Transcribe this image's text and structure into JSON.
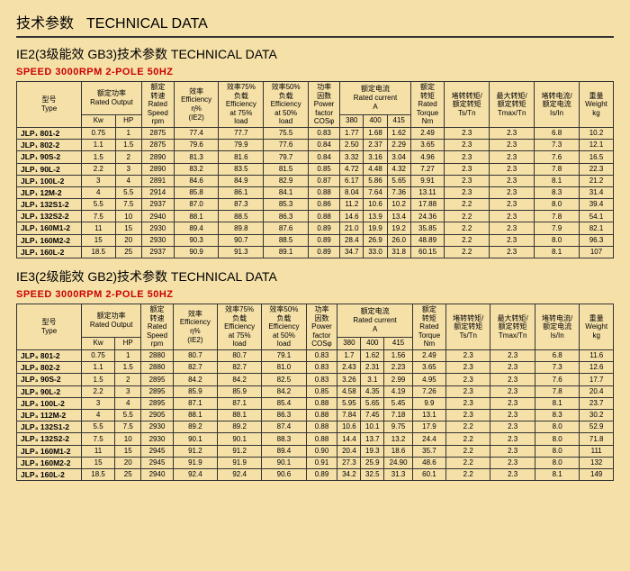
{
  "header": {
    "cn": "技术参数",
    "en": "TECHNICAL DATA"
  },
  "sections": [
    {
      "title": "IE2(3级能效 GB3)技术参数  TECHNICAL DATA",
      "speed": "SPEED 3000RPM  2-POLE 50HZ",
      "rows": [
        [
          "JLP₁ 801-2",
          "0.75",
          "1",
          "2875",
          "77.4",
          "77.7",
          "75.5",
          "0.83",
          "1.77",
          "1.68",
          "1.62",
          "2.49",
          "2.3",
          "2.3",
          "6.8",
          "10.2"
        ],
        [
          "JLP₁ 802-2",
          "1.1",
          "1.5",
          "2875",
          "79.6",
          "79.9",
          "77.6",
          "0.84",
          "2.50",
          "2.37",
          "2.29",
          "3.65",
          "2.3",
          "2.3",
          "7.3",
          "12.1"
        ],
        [
          "JLP₁ 90S-2",
          "1.5",
          "2",
          "2890",
          "81.3",
          "81.6",
          "79.7",
          "0.84",
          "3.32",
          "3.16",
          "3.04",
          "4.96",
          "2.3",
          "2.3",
          "7.6",
          "16.5"
        ],
        [
          "JLP₁ 90L-2",
          "2.2",
          "3",
          "2890",
          "83.2",
          "83.5",
          "81.5",
          "0.85",
          "4.72",
          "4.48",
          "4.32",
          "7.27",
          "2.3",
          "2.3",
          "7.8",
          "22.3"
        ],
        [
          "JLP₁ 100L-2",
          "3",
          "4",
          "2891",
          "84.6",
          "84.9",
          "82.9",
          "0.87",
          "6.17",
          "5.86",
          "5.65",
          "9.91",
          "2.3",
          "2.3",
          "8.1",
          "21.2"
        ],
        [
          "JLP₁ 12M-2",
          "4",
          "5.5",
          "2914",
          "85.8",
          "86.1",
          "84.1",
          "0.88",
          "8.04",
          "7.64",
          "7.36",
          "13.11",
          "2.3",
          "2.3",
          "8.3",
          "31.4"
        ],
        [
          "JLP₁ 132S1-2",
          "5.5",
          "7.5",
          "2937",
          "87.0",
          "87.3",
          "85.3",
          "0.86",
          "11.2",
          "10.6",
          "10.2",
          "17.88",
          "2.2",
          "2.3",
          "8.0",
          "39.4"
        ],
        [
          "JLP₁ 132S2-2",
          "7.5",
          "10",
          "2940",
          "88.1",
          "88.5",
          "86.3",
          "0.88",
          "14.6",
          "13.9",
          "13.4",
          "24.36",
          "2.2",
          "2.3",
          "7.8",
          "54.1"
        ],
        [
          "JLP₁ 160M1-2",
          "11",
          "15",
          "2930",
          "89.4",
          "89.8",
          "87.6",
          "0.89",
          "21.0",
          "19.9",
          "19.2",
          "35.85",
          "2.2",
          "2.3",
          "7.9",
          "82.1"
        ],
        [
          "JLP₁ 160M2-2",
          "15",
          "20",
          "2930",
          "90.3",
          "90.7",
          "88.5",
          "0.89",
          "28.4",
          "26.9",
          "26.0",
          "48.89",
          "2.2",
          "2.3",
          "8.0",
          "96.3"
        ],
        [
          "JLP₁ 160L-2",
          "18.5",
          "25",
          "2937",
          "90.9",
          "91.3",
          "89.1",
          "0.89",
          "34.7",
          "33.0",
          "31.8",
          "60.15",
          "2.2",
          "2.3",
          "8.1",
          "107"
        ]
      ]
    },
    {
      "title": "IE3(2级能效 GB2)技术参数  TECHNICAL DATA",
      "speed": "SPEED 3000RPM  2-POLE 50HZ",
      "rows": [
        [
          "JLP₃ 801-2",
          "0.75",
          "1",
          "2880",
          "80.7",
          "80.7",
          "79.1",
          "0.83",
          "1.7",
          "1.62",
          "1.56",
          "2.49",
          "2.3",
          "2.3",
          "6.8",
          "11.6"
        ],
        [
          "JLP₃ 802-2",
          "1.1",
          "1.5",
          "2880",
          "82.7",
          "82.7",
          "81.0",
          "0.83",
          "2.43",
          "2.31",
          "2.23",
          "3.65",
          "2.3",
          "2.3",
          "7.3",
          "12.6"
        ],
        [
          "JLP₃ 90S-2",
          "1.5",
          "2",
          "2895",
          "84.2",
          "84.2",
          "82.5",
          "0.83",
          "3.26",
          "3.1",
          "2.99",
          "4.95",
          "2.3",
          "2.3",
          "7.6",
          "17.7"
        ],
        [
          "JLP₃ 90L-2",
          "2.2",
          "3",
          "2895",
          "85.9",
          "85.9",
          "84.2",
          "0.85",
          "4.58",
          "4.35",
          "4.19",
          "7.26",
          "2.3",
          "2.3",
          "7.8",
          "20.4"
        ],
        [
          "JLP₃ 100L-2",
          "3",
          "4",
          "2895",
          "87.1",
          "87.1",
          "85.4",
          "0.88",
          "5.95",
          "5.65",
          "5.45",
          "9.9",
          "2.3",
          "2.3",
          "8.1",
          "23.7"
        ],
        [
          "JLP₃ 112M-2",
          "4",
          "5.5",
          "2905",
          "88.1",
          "88.1",
          "86.3",
          "0.88",
          "7.84",
          "7.45",
          "7.18",
          "13.1",
          "2.3",
          "2.3",
          "8.3",
          "30.2"
        ],
        [
          "JLP₃ 132S1-2",
          "5.5",
          "7.5",
          "2930",
          "89.2",
          "89.2",
          "87.4",
          "0.88",
          "10.6",
          "10.1",
          "9.75",
          "17.9",
          "2.2",
          "2.3",
          "8.0",
          "52.9"
        ],
        [
          "JLP₃ 132S2-2",
          "7.5",
          "10",
          "2930",
          "90.1",
          "90.1",
          "88.3",
          "0.88",
          "14.4",
          "13.7",
          "13.2",
          "24.4",
          "2.2",
          "2.3",
          "8.0",
          "71.8"
        ],
        [
          "JLP₃ 160M1-2",
          "11",
          "15",
          "2945",
          "91.2",
          "91.2",
          "89.4",
          "0.90",
          "20.4",
          "19.3",
          "18.6",
          "35.7",
          "2.2",
          "2.3",
          "8.0",
          "111"
        ],
        [
          "JLP₃ 160M2-2",
          "15",
          "20",
          "2945",
          "91.9",
          "91.9",
          "90.1",
          "0.91",
          "27.3",
          "25.9",
          "24.90",
          "48.6",
          "2.2",
          "2.3",
          "8.0",
          "132"
        ],
        [
          "JLP₃ 160L-2",
          "18.5",
          "25",
          "2940",
          "92.4",
          "92.4",
          "90.6",
          "0.89",
          "34.2",
          "32.5",
          "31.3",
          "60.1",
          "2.2",
          "2.3",
          "8.1",
          "149"
        ]
      ]
    }
  ],
  "hdr": {
    "type": "型号\nType",
    "rated_output": "额定功率\nRated Output",
    "kw": "Kw",
    "hp": "HP",
    "speed": "额定\n转速\nRated\nSpeed\nrpm",
    "eff": "效率\nEfficiency\nη%\n(IE2)",
    "eff75": "效率75%\n负载\nEfficiency\nat 75%\nload",
    "eff50": "效率50%\n负载\nEfficiency\nat 50%\nload",
    "pf": "功率\n因数\nPower\nfactor\nCOSφ",
    "current": "额定电流\nRated current\nA",
    "c380": "380",
    "c400": "400",
    "c415": "415",
    "torque": "额定\n转矩\nRated\nTorque\nNm",
    "tstn": "堵转转矩/\n额定转矩\nTs/Tn",
    "tmaxtn": "最大转矩/\n额定转矩\nTmax/Tn",
    "isin": "堵转电流/\n额定电流\nIs/In",
    "weight": "重量\nWeight\nkg"
  }
}
